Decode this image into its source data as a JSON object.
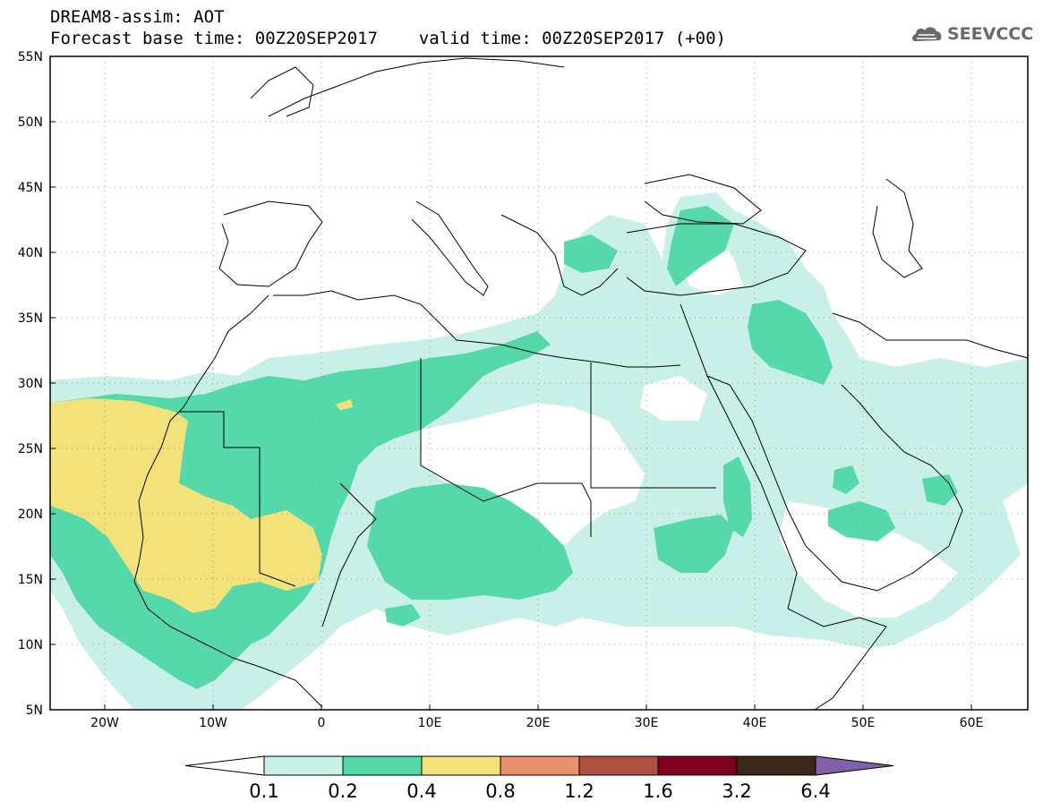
{
  "header": {
    "line1": "DREAM8-assim: AOT",
    "line2": "Forecast base time: 00Z20SEP2017    valid time: 00Z20SEP2017 (+00)"
  },
  "logo": {
    "text": "SEEVCCC",
    "icon": "cloud-icon"
  },
  "map": {
    "projection": "lat-lon",
    "lon_range": [
      -25,
      65
    ],
    "lat_range": [
      5,
      55
    ],
    "lon_ticks": [
      "20W",
      "10W",
      "0",
      "10E",
      "20E",
      "30E",
      "40E",
      "50E",
      "60E"
    ],
    "lat_ticks": [
      "55N",
      "50N",
      "45N",
      "40N",
      "35N",
      "30N",
      "25N",
      "20N",
      "15N",
      "10N",
      "5N"
    ],
    "grid": "dotted",
    "field": "Aerosol optical thickness"
  },
  "colorbar": {
    "labels": [
      "0.1",
      "0.2",
      "0.4",
      "0.8",
      "1.2",
      "1.6",
      "3.2",
      "6.4"
    ],
    "colors": [
      "#c8f0e8",
      "#55d9ab",
      "#f3e27a",
      "#e8916a",
      "#b05040",
      "#800020",
      "#3a2818",
      "#8060a8"
    ],
    "under_color": "#ffffff"
  },
  "colors": {
    "level1": "#c8f0e8",
    "level2": "#55d9ab",
    "level3": "#f3e27a"
  }
}
